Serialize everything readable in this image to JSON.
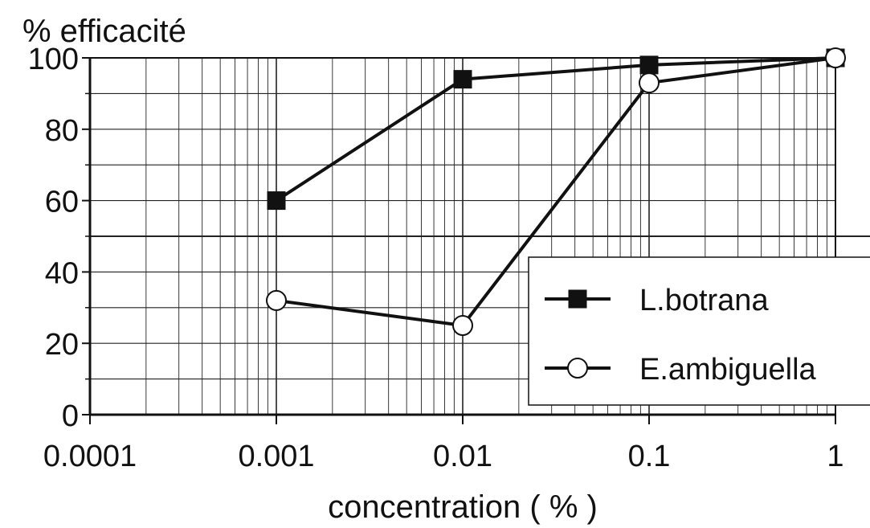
{
  "chart_data": {
    "type": "line",
    "title": "",
    "ylabel": "% efficacité",
    "xlabel": "concentration ( % )",
    "x_scale": "log",
    "xlim": [
      0.0001,
      1
    ],
    "ylim": [
      0,
      100
    ],
    "x_ticks": [
      0.0001,
      0.001,
      0.01,
      0.1,
      1
    ],
    "x_tick_labels": [
      "0.0001",
      "0.001",
      "0.01",
      "0.1",
      "1"
    ],
    "y_ticks": [
      0,
      20,
      40,
      60,
      80,
      100
    ],
    "y_tick_labels": [
      "0",
      "20",
      "40",
      "60",
      "80",
      "100"
    ],
    "grid": true,
    "legend_position": "bottom-right",
    "x": [
      0.001,
      0.01,
      0.1,
      1
    ],
    "series": [
      {
        "name": "L.botrana",
        "marker": "filled-square",
        "values": [
          60,
          94,
          98,
          100
        ]
      },
      {
        "name": "E.ambiguella",
        "marker": "open-circle",
        "values": [
          32,
          25,
          93,
          100
        ]
      }
    ]
  }
}
